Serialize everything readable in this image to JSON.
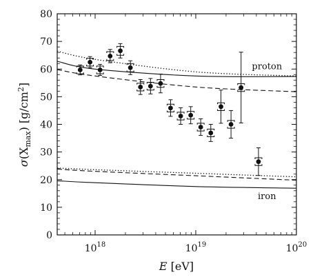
{
  "chart_data": {
    "type": "scatter",
    "title": "",
    "xlabel": {
      "main": "E",
      "unit": "[eV]"
    },
    "ylabel": {
      "sigma": "σ",
      "open": "(X",
      "sub": "max",
      "close": ")",
      "unit": "[g/cm",
      "sup": "2",
      "unit_close": "]"
    },
    "x_scale": "log",
    "xlim": [
      4.2e+17,
      1e+20
    ],
    "ylim": [
      0,
      80
    ],
    "x_ticks": [
      {
        "value": 1e+18,
        "base": "10",
        "exp": "18"
      },
      {
        "value": 1e+19,
        "base": "10",
        "exp": "19"
      },
      {
        "value": 1e+20,
        "base": "10",
        "exp": "20"
      }
    ],
    "y_ticks": [
      {
        "value": 0,
        "label": "0"
      },
      {
        "value": 10,
        "label": "10"
      },
      {
        "value": 20,
        "label": "20"
      },
      {
        "value": 30,
        "label": "30"
      },
      {
        "value": 40,
        "label": "40"
      },
      {
        "value": 50,
        "label": "50"
      },
      {
        "value": 60,
        "label": "60"
      },
      {
        "value": 70,
        "label": "70"
      },
      {
        "value": 80,
        "label": "80"
      }
    ],
    "grid": false,
    "annotations": [
      {
        "text": "proton",
        "x": 5.1e+19,
        "y": 60
      },
      {
        "text": "iron",
        "x": 5.1e+19,
        "y": 13
      }
    ],
    "series": [
      {
        "style": "points",
        "x": [
          7.1e+17,
          8.9e+17,
          1.12e+18,
          1.41e+18,
          1.78e+18,
          2.24e+18,
          2.82e+18,
          3.55e+18,
          4.47e+18,
          5.62e+18,
          7.08e+18,
          8.91e+18,
          1.12e+19,
          1.41e+19,
          1.78e+19,
          2.24e+19,
          2.82e+19,
          4.2e+19
        ],
        "y": [
          59.7,
          62.5,
          59.7,
          64.7,
          66.6,
          60.5,
          53.5,
          53.8,
          54.8,
          45.9,
          43.0,
          43.3,
          39.0,
          36.9,
          46.4,
          40.0,
          53.3,
          26.5
        ],
        "y_err_stat": [
          1.8,
          2.0,
          2.0,
          2.4,
          2.6,
          2.5,
          2.7,
          2.8,
          3.4,
          3.0,
          3.0,
          3.1,
          3.0,
          3.1,
          6.0,
          5.0,
          12.8,
          5.0
        ],
        "y_err_sys": [
          1.4,
          1.4,
          1.4,
          1.6,
          1.6,
          1.5,
          1.4,
          1.4,
          1.4,
          1.4,
          1.4,
          1.4,
          1.4,
          1.4,
          1.4,
          1.4,
          1.4,
          1.4
        ]
      },
      {
        "style": "dotted",
        "x": [
          4.2e+17,
          1e+18,
          1e+19,
          1e+20
        ],
        "y": [
          66.5,
          63.5,
          59.0,
          57.5
        ]
      },
      {
        "style": "solid",
        "x": [
          4.2e+17,
          1e+18,
          1e+19,
          1e+20
        ],
        "y": [
          62.8,
          60.0,
          57.5,
          57.3
        ]
      },
      {
        "style": "dashed",
        "x": [
          4.2e+17,
          1e+18,
          1e+19,
          1e+20
        ],
        "y": [
          59.8,
          57.5,
          53.5,
          51.8
        ]
      },
      {
        "style": "dotted",
        "x": [
          4.2e+17,
          1e+18,
          1e+19,
          1e+20
        ],
        "y": [
          24.2,
          23.6,
          22.3,
          21.0
        ]
      },
      {
        "style": "dashed",
        "x": [
          4.2e+17,
          1e+18,
          1e+19,
          1e+20
        ],
        "y": [
          23.8,
          23.0,
          21.4,
          19.8
        ]
      },
      {
        "style": "solid",
        "x": [
          4.2e+17,
          1e+18,
          1e+19,
          1e+20
        ],
        "y": [
          19.6,
          18.9,
          17.5,
          16.9
        ]
      }
    ]
  }
}
